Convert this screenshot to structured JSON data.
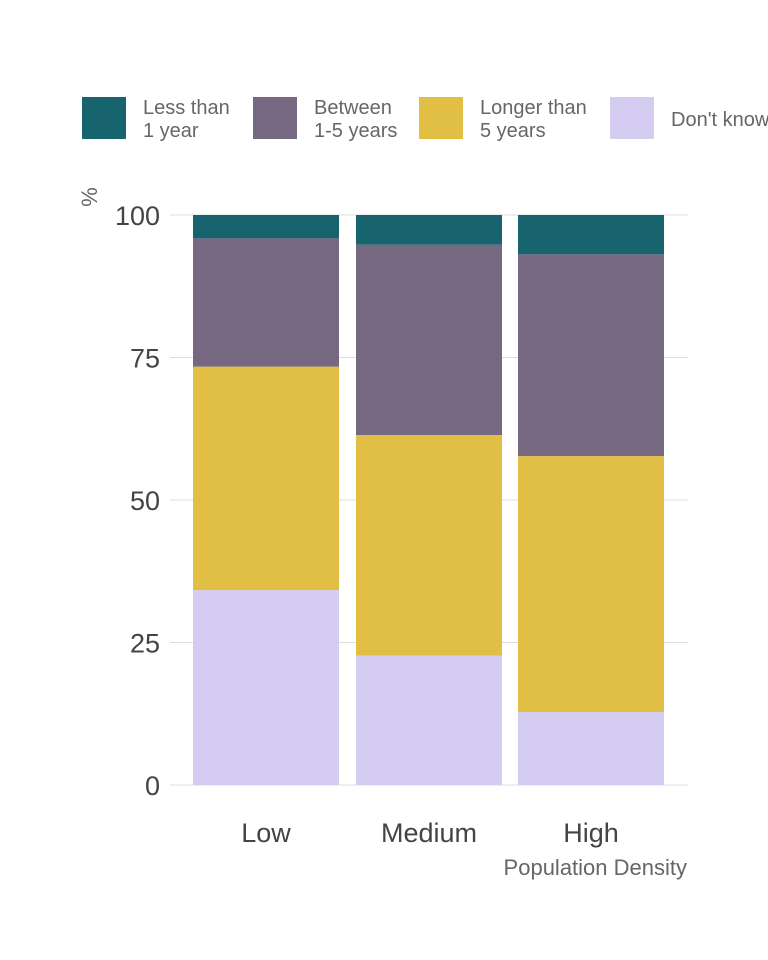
{
  "chart_data": {
    "type": "bar",
    "stacked": true,
    "categories": [
      "Low",
      "Medium",
      "High"
    ],
    "series": [
      {
        "name": "Don't know",
        "legend_lines": [
          "Don't know"
        ],
        "color": "#d4cdf1",
        "values": [
          34.2,
          22.7,
          12.8
        ]
      },
      {
        "name": "Longer than 5 years",
        "legend_lines": [
          "Longer than",
          "5 years"
        ],
        "color": "#e1bf44",
        "values": [
          39.2,
          38.7,
          44.9
        ]
      },
      {
        "name": "Between 1-5 years",
        "legend_lines": [
          "Between",
          "1-5 years"
        ],
        "color": "#766881",
        "values": [
          22.5,
          33.4,
          35.4
        ]
      },
      {
        "name": "Less than 1 year",
        "legend_lines": [
          "Less than",
          "1 year"
        ],
        "color": "#17646e",
        "values": [
          4.1,
          5.2,
          6.9
        ]
      }
    ],
    "legend_order": [
      3,
      2,
      1,
      0
    ],
    "legend_position": "top",
    "ylabel": "%",
    "xlabel": "Population Density",
    "ylim": [
      0,
      100
    ],
    "yticks": [
      0,
      25,
      50,
      75,
      100
    ],
    "grid": true
  }
}
